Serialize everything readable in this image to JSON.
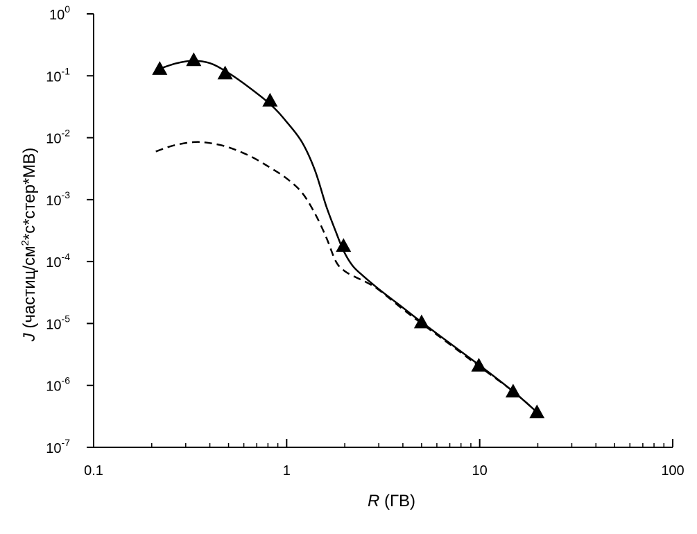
{
  "chart_data": {
    "type": "line",
    "xscale": "log",
    "yscale": "log",
    "xlim": [
      0.1,
      100
    ],
    "ylim": [
      1e-07,
      1
    ],
    "xlabel": {
      "var": "R",
      "unit": " (ГВ)"
    },
    "ylabel": {
      "var": "J",
      "pre": " (частиц/см",
      "sup": "2",
      "post": "*с*стер*МВ)"
    },
    "x_ticks": [
      {
        "value": 0.1,
        "label": "0.1"
      },
      {
        "value": 1,
        "label": "1"
      },
      {
        "value": 10,
        "label": "10"
      },
      {
        "value": 100,
        "label": "100"
      }
    ],
    "y_ticks": [
      {
        "value": 1,
        "base": "10",
        "exp": "0"
      },
      {
        "value": 0.1,
        "base": "10",
        "exp": "-1"
      },
      {
        "value": 0.01,
        "base": "10",
        "exp": "-2"
      },
      {
        "value": 0.001,
        "base": "10",
        "exp": "-3"
      },
      {
        "value": 0.0001,
        "base": "10",
        "exp": "-4"
      },
      {
        "value": 1e-05,
        "base": "10",
        "exp": "-5"
      },
      {
        "value": 1e-06,
        "base": "10",
        "exp": "-6"
      },
      {
        "value": 1e-07,
        "base": "10",
        "exp": "-7"
      }
    ],
    "series": [
      {
        "style": "triangle-markers",
        "color": "#000000",
        "x": [
          0.22,
          0.33,
          0.48,
          0.82,
          1.97,
          5.0,
          9.9,
          14.9,
          19.8
        ],
        "y": [
          0.13,
          0.18,
          0.11,
          0.04,
          0.00018,
          1.05e-05,
          2.1e-06,
          8e-07,
          3.7e-07
        ]
      },
      {
        "style": "solid",
        "color": "#000000",
        "x": [
          0.22,
          0.27,
          0.33,
          0.4,
          0.48,
          0.6,
          0.82,
          1.0,
          1.2,
          1.4,
          1.6,
          1.8,
          1.97,
          2.2,
          2.5,
          3.0,
          4.0,
          5.0,
          7.0,
          10.0,
          14.9,
          19.8
        ],
        "y": [
          0.13,
          0.16,
          0.175,
          0.16,
          0.12,
          0.075,
          0.035,
          0.018,
          0.0085,
          0.003,
          0.0008,
          0.0003,
          0.00015,
          8.5e-05,
          5.8e-05,
          3.6e-05,
          1.8e-05,
          1.05e-05,
          4.8e-06,
          2.1e-06,
          8e-07,
          3.7e-07
        ]
      },
      {
        "style": "dashed",
        "color": "#000000",
        "x": [
          0.21,
          0.26,
          0.33,
          0.4,
          0.5,
          0.65,
          0.82,
          1.0,
          1.2,
          1.4,
          1.6,
          1.8,
          2.0,
          2.3,
          2.6,
          3.0,
          4.0,
          5.0,
          7.0,
          10.0,
          14.9,
          19.8
        ],
        "y": [
          0.006,
          0.0075,
          0.0085,
          0.0082,
          0.007,
          0.005,
          0.0033,
          0.0022,
          0.0013,
          0.0006,
          0.00025,
          0.0001,
          7e-05,
          5.5e-05,
          4.6e-05,
          3.5e-05,
          1.7e-05,
          1e-05,
          4.6e-06,
          2e-06,
          8e-07,
          3.7e-07
        ]
      }
    ]
  }
}
